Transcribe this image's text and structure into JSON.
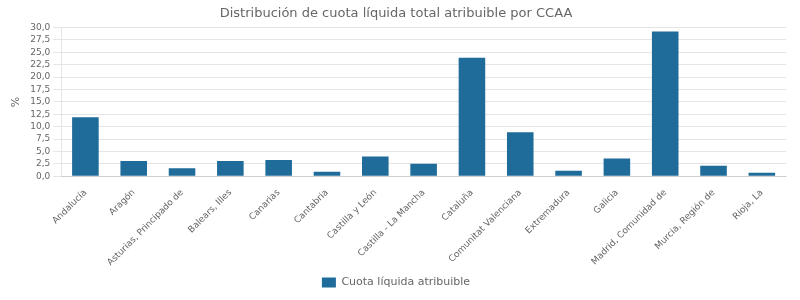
{
  "chart_data": {
    "type": "bar",
    "title": "Distribución de cuota líquida total atribuible por CCAA",
    "ylabel": "%",
    "categories": [
      "Andalucía",
      "Aragón",
      "Asturias, Principado de",
      "Balears, Illes",
      "Canarias",
      "Cantabria",
      "Castilla y León",
      "Castilla - La Mancha",
      "Cataluña",
      "Comunitat Valenciana",
      "Extremadura",
      "Galicia",
      "Madrid, Comunidad de",
      "Murcia, Región de",
      "Rioja, La"
    ],
    "series": [
      {
        "name": "Cuota líquida atribuible",
        "color": "#1F6B9A",
        "values": [
          11.9,
          3.1,
          1.6,
          3.1,
          3.3,
          0.9,
          4.0,
          2.5,
          23.9,
          8.9,
          1.1,
          3.6,
          29.2,
          2.1,
          0.7
        ]
      }
    ],
    "ylim": [
      0,
      30
    ],
    "yticks": [
      {
        "value": 0.0,
        "label": "0,0"
      },
      {
        "value": 2.5,
        "label": "2,5"
      },
      {
        "value": 5.0,
        "label": "5,0"
      },
      {
        "value": 7.5,
        "label": "7,5"
      },
      {
        "value": 10.0,
        "label": "10,0"
      },
      {
        "value": 12.5,
        "label": "12,5"
      },
      {
        "value": 15.0,
        "label": "15,0"
      },
      {
        "value": 17.5,
        "label": "17,5"
      },
      {
        "value": 20.0,
        "label": "20,0"
      },
      {
        "value": 22.5,
        "label": "22,5"
      },
      {
        "value": 25.0,
        "label": "25,0"
      },
      {
        "value": 27.5,
        "label": "27,5"
      },
      {
        "value": 30.0,
        "label": "30,0"
      }
    ],
    "grid": true,
    "legend": "bottom"
  }
}
